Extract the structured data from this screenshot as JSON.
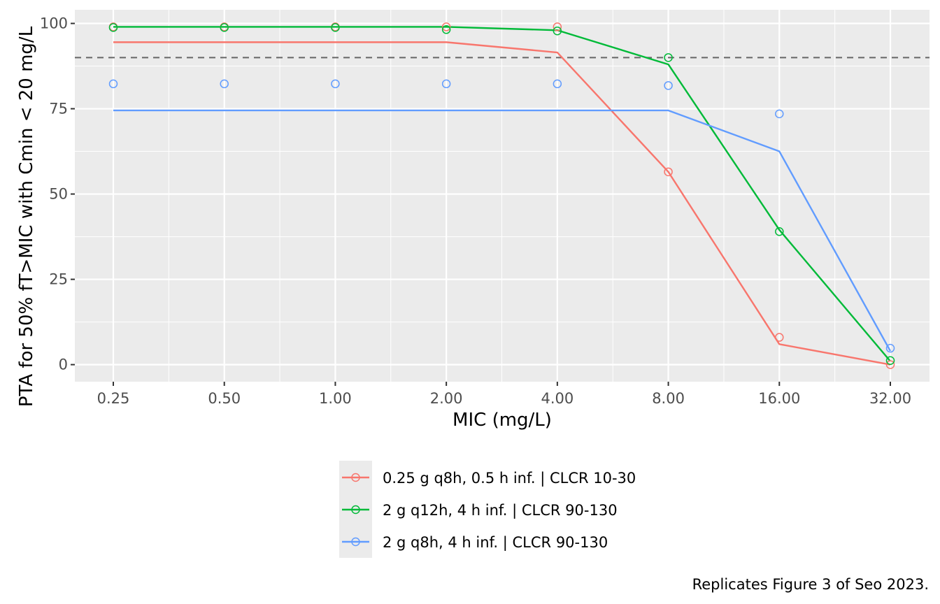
{
  "chart_data": {
    "type": "line",
    "xlabel": "MIC (mg/L)",
    "ylabel": "PTA for 50% fT>MIC with Cmin < 20 mg/L",
    "caption": "Replicates Figure 3 of Seo 2023.",
    "x_scale": "log2",
    "x": [
      0.25,
      0.5,
      1,
      2,
      4,
      8,
      16,
      32
    ],
    "x_tick_labels": [
      "0.25",
      "0.50",
      "1.00",
      "2.00",
      "4.00",
      "8.00",
      "16.00",
      "32.00"
    ],
    "y_ticks": [
      0,
      25,
      50,
      75,
      100
    ],
    "ylim": [
      -5,
      104
    ],
    "reference_line": {
      "y": 90,
      "style": "dashed",
      "color": "#666666"
    },
    "grid": true,
    "panel_background": "#ebebeb",
    "legend_position": "bottom",
    "series": [
      {
        "name": "0.25 g q8h, 0.5 h inf. | CLCR 10-30",
        "color": "#F8766D",
        "line_values": [
          94.5,
          94.5,
          94.5,
          94.5,
          91.5,
          56.5,
          6,
          0
        ],
        "point_values": [
          99,
          99,
          99,
          99,
          99,
          56.5,
          8,
          0
        ]
      },
      {
        "name": "2 g q12h, 4 h inf. | CLCR 90-130",
        "color": "#00BA38",
        "line_values": [
          99,
          99,
          99,
          99,
          98,
          88,
          39.5,
          1
        ],
        "point_values": [
          98.8,
          98.8,
          98.8,
          98.2,
          97.8,
          90,
          39,
          1.2
        ]
      },
      {
        "name": "2 g q8h, 4 h inf. | CLCR 90-130",
        "color": "#619CFF",
        "line_values": [
          74.5,
          74.5,
          74.5,
          74.5,
          74.5,
          74.5,
          62.5,
          4
        ],
        "point_values": [
          82.3,
          82.3,
          82.3,
          82.3,
          82.3,
          81.8,
          73.5,
          4.8
        ]
      }
    ]
  }
}
